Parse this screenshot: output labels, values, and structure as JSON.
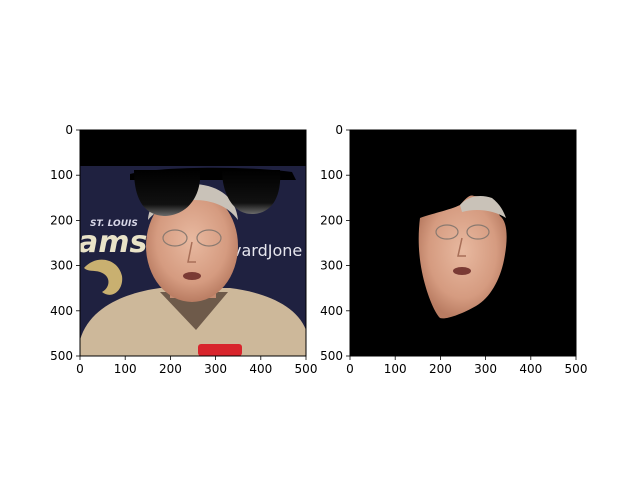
{
  "chart_data": [
    {
      "type": "image",
      "title": "",
      "xlabel": "",
      "ylabel": "",
      "xlim": [
        0,
        500
      ],
      "ylim": [
        500,
        0
      ],
      "y_inverted": true,
      "xticks": [
        0,
        100,
        200,
        300,
        400,
        500
      ],
      "yticks": [
        0,
        100,
        200,
        300,
        400,
        500
      ],
      "content": "photo of man with sunglasses overlay",
      "background_text": [
        "ST. LOUIS",
        "ams",
        "vardJone"
      ]
    },
    {
      "type": "image",
      "title": "",
      "xlabel": "",
      "ylabel": "",
      "xlim": [
        0,
        500
      ],
      "ylim": [
        500,
        0
      ],
      "y_inverted": true,
      "xticks": [
        0,
        100,
        200,
        300,
        400,
        500
      ],
      "yticks": [
        0,
        100,
        200,
        300,
        400,
        500
      ],
      "content": "segmented face on black background"
    }
  ],
  "colors": {
    "background_band": "#ffffff",
    "banner": "#1f2140",
    "mask_background": "#000000",
    "skin": "#d9a68a",
    "shirt": "#cdb89a"
  }
}
